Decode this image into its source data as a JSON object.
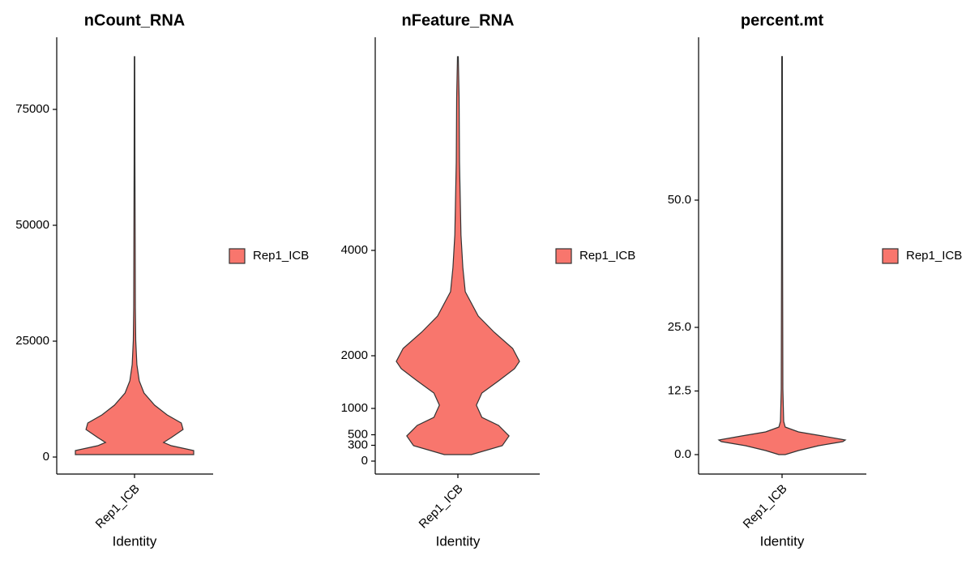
{
  "chart_data": [
    {
      "type": "violin",
      "title": "nCount_RNA",
      "x_label": "Identity",
      "categories": [
        "Rep1_ICB"
      ],
      "legend": "right",
      "series": [
        {
          "name": "Rep1_ICB",
          "color": "#f8766d",
          "density_y": [
            524,
            1399,
            2448,
            3147,
            4196,
            5944,
            7343,
            9091,
            11189,
            13811,
            16434,
            19930,
            25175,
            32168,
            46154,
            63636,
            86364
          ],
          "density": [
            1,
            1,
            0.62,
            0.49,
            0.62,
            0.82,
            0.79,
            0.55,
            0.34,
            0.16,
            0.08,
            0.04,
            0.02,
            0.014,
            0.011,
            0.007,
            0.004
          ]
        }
      ],
      "ylim": [
        -3670,
        90560
      ],
      "yticks": [
        0,
        25000,
        50000,
        75000
      ]
    },
    {
      "type": "violin",
      "title": "nFeature_RNA",
      "x_label": "Identity",
      "categories": [
        "Rep1_ICB"
      ],
      "legend": "right",
      "series": [
        {
          "name": "Rep1_ICB",
          "color": "#f8766d",
          "density_y": [
            123,
            292,
            477,
            677,
            831,
            1062,
            1292,
            1523,
            1754,
            1892,
            2138,
            2446,
            2754,
            3215,
            3677,
            4292,
            5677,
            6908,
            7677
          ],
          "density": [
            0.22,
            0.72,
            0.83,
            0.66,
            0.39,
            0.3,
            0.39,
            0.66,
            0.92,
            1,
            0.89,
            0.59,
            0.33,
            0.12,
            0.08,
            0.05,
            0.026,
            0.02,
            0.007
          ]
        }
      ],
      "ylim": [
        -246,
        8046
      ],
      "yticks": [
        0,
        300,
        500,
        1000,
        2000,
        4000
      ]
    },
    {
      "type": "violin",
      "title": "percent.mt",
      "x_label": "Identity",
      "categories": [
        "Rep1_ICB"
      ],
      "legend": "right",
      "series": [
        {
          "name": "Rep1_ICB",
          "color": "#f8766d",
          "density_y": [
            0,
            0.8,
            1.75,
            2.55,
            2.87,
            3.66,
            4.46,
            5.41,
            6.53,
            12.9,
            41.6,
            78.2
          ],
          "density": [
            0.05,
            0.26,
            0.58,
            0.96,
            1,
            0.64,
            0.26,
            0.05,
            0.026,
            0.013,
            0.008,
            0.005
          ]
        }
      ],
      "ylim": [
        -3.82,
        82
      ],
      "yticks": [
        {
          "value": 0,
          "label": "0.0"
        },
        12.5,
        {
          "value": 25,
          "label": "25.0"
        },
        {
          "value": 50,
          "label": "50.0"
        }
      ]
    }
  ]
}
